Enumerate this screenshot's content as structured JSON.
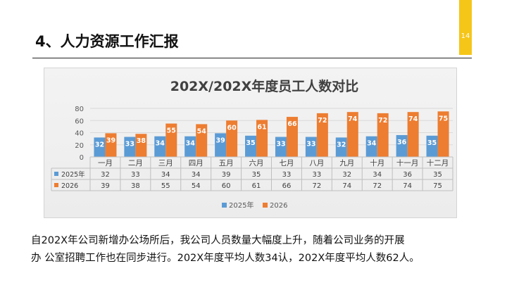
{
  "slide": {
    "title": "4、人力资源工作汇报",
    "page_number": "14",
    "accent_color": "#f5c518"
  },
  "caption": {
    "line1": "自202X年公司新增办公场所后，我公司人员数量大幅度上升，随着公司业务的开展",
    "line2": "办 公室招聘工作也在同步进行。202X年度平均人数34认，202X年度平均人数62人。"
  },
  "chart_data": {
    "type": "bar",
    "title": "202X/202X年度员工人数对比",
    "categories": [
      "一月",
      "二月",
      "三月",
      "四月",
      "五月",
      "六月",
      "七月",
      "八月",
      "九月",
      "十月",
      "十一月",
      "十二月"
    ],
    "series": [
      {
        "name": "2025年",
        "color": "#5b9bd5",
        "values": [
          32,
          33,
          34,
          34,
          39,
          35,
          33,
          33,
          32,
          34,
          36,
          35
        ]
      },
      {
        "name": "2026",
        "color": "#ed7d31",
        "values": [
          39,
          38,
          55,
          54,
          60,
          61,
          66,
          72,
          74,
          72,
          74,
          75
        ]
      }
    ],
    "yticks": [
      "0",
      "20",
      "40",
      "60",
      "80"
    ],
    "ylim": [
      0,
      80
    ],
    "grid": true,
    "legend_position": "bottom",
    "data_table": true
  }
}
